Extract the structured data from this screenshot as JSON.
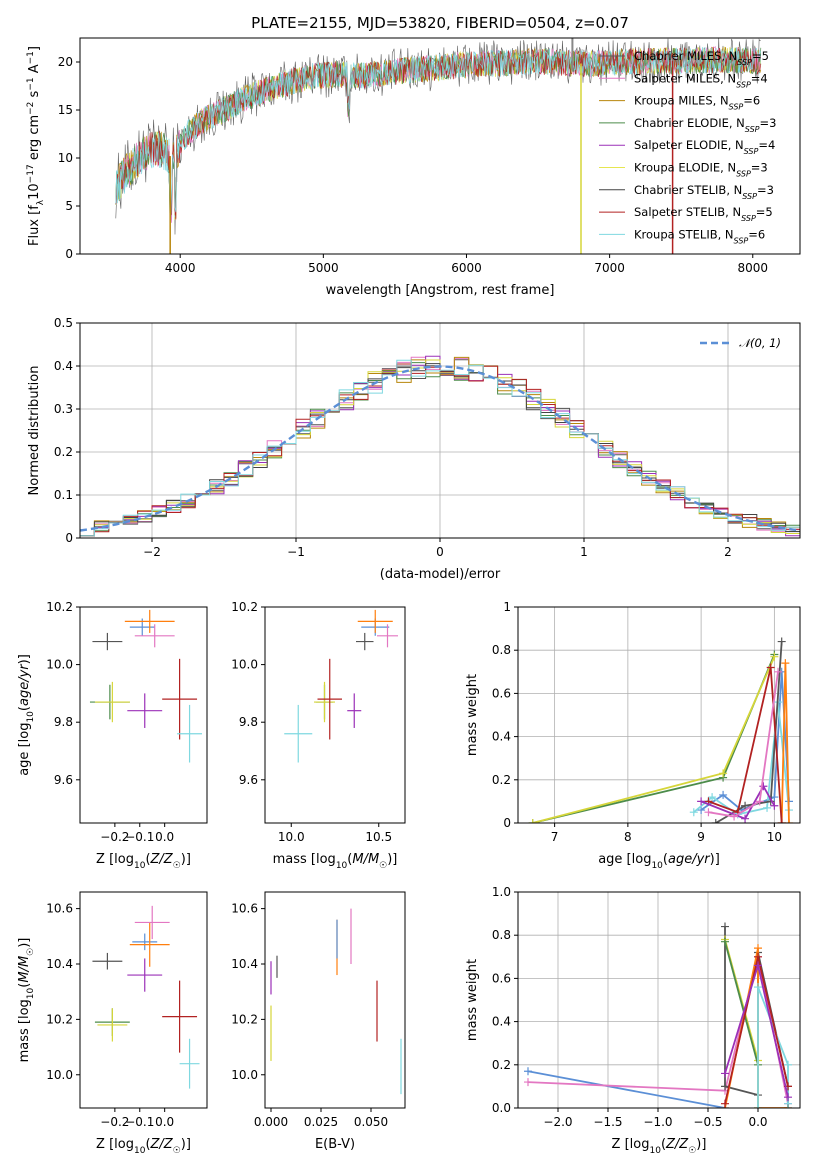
{
  "figure_title": "PLATE=2155, MJD=53820, FIBERID=0504, z=0.07",
  "colors": {
    "chabrier_miles": "#1f77b4",
    "salpeter_miles": "#ff7f0e",
    "kroupa_miles": "#c9a227",
    "chabrier_elodie": "#4c8c4a",
    "salpeter_elodie": "#9b30b8",
    "kroupa_elodie": "#d6d63a",
    "chabrier_stelib": "#555555",
    "salpeter_stelib": "#b22222",
    "kroupa_stelib": "#7fd8e0",
    "gaussian": "#5b8fd6"
  },
  "legend": [
    {
      "label": "Chabrier MILES, N",
      "sub": "SSP",
      "suffix": "=5",
      "color": "#5a5a5a"
    },
    {
      "label": "Salpeter MILES, N",
      "sub": "SSP",
      "suffix": "=4",
      "color": "#e377c2"
    },
    {
      "label": "Kroupa MILES, N",
      "sub": "SSP",
      "suffix": "=6",
      "color": "#b8860b"
    },
    {
      "label": "Chabrier ELODIE, N",
      "sub": "SSP",
      "suffix": "=3",
      "color": "#4c8c4a"
    },
    {
      "label": "Salpeter ELODIE, N",
      "sub": "SSP",
      "suffix": "=4",
      "color": "#9b30b8"
    },
    {
      "label": "Kroupa ELODIE, N",
      "sub": "SSP",
      "suffix": "=3",
      "color": "#e6e650"
    },
    {
      "label": "Chabrier STELIB, N",
      "sub": "SSP",
      "suffix": "=3",
      "color": "#444444"
    },
    {
      "label": "Salpeter STELIB, N",
      "sub": "SSP",
      "suffix": "=5",
      "color": "#b22222"
    },
    {
      "label": "Kroupa STELIB, N",
      "sub": "SSP",
      "suffix": "=6",
      "color": "#7fd8e0"
    }
  ],
  "chart_data": [
    {
      "id": "spectrum",
      "type": "line",
      "xlabel": "wavelength [Angstrom, rest frame]",
      "ylabel": "Flux [fλ10⁻¹⁷ erg cm⁻² s⁻¹ A⁻¹]",
      "xlim": [
        3300,
        8330
      ],
      "ylim": [
        0,
        22.5
      ],
      "xticks": [
        4000,
        5000,
        6000,
        7000,
        8000
      ],
      "yticks": [
        0,
        5,
        10,
        15,
        20
      ],
      "envelope": {
        "x": [
          3550,
          3650,
          3750,
          3850,
          3950,
          4050,
          4150,
          4300,
          4500,
          4700,
          4900,
          5100,
          5300,
          5500,
          5700,
          5900,
          6100,
          6300,
          6500,
          6700,
          6900,
          7100,
          7300,
          7500,
          7700,
          7900,
          8050
        ],
        "y": [
          7,
          9,
          10.5,
          11,
          10,
          12.5,
          13.8,
          15,
          16.5,
          17.6,
          18.5,
          18.7,
          18.6,
          19,
          19.3,
          19.6,
          19.8,
          19.9,
          20.1,
          19.9,
          19.8,
          20,
          20.1,
          20.1,
          20.2,
          20.2,
          20.1
        ]
      },
      "dips_x": [
        3934,
        4861,
        5175,
        6563,
        6800,
        7440
      ]
    },
    {
      "id": "residuals",
      "type": "histogram",
      "xlabel": "(data-model)/error",
      "ylabel": "Normed distribution",
      "xlim": [
        -2.5,
        2.5
      ],
      "ylim": [
        0,
        0.5
      ],
      "xticks": [
        -2,
        -1,
        0,
        1,
        2
      ],
      "yticks": [
        0.0,
        0.1,
        0.2,
        0.3,
        0.4,
        0.5
      ],
      "legend_label": "𝒩(0, 1)",
      "bin_width": 0.1,
      "series_bins_from": -2.5
    },
    {
      "id": "z_age",
      "type": "errorbar",
      "xlabel": "Z [log10(Z/Z☉)]",
      "ylabel": "age [log10(age/yr)]",
      "xlim": [
        -0.34,
        0.17
      ],
      "ylim": [
        9.45,
        10.2
      ],
      "xticks": [
        -0.2,
        -0.1,
        0.0
      ],
      "yticks": [
        9.6,
        9.8,
        10.0,
        10.2
      ],
      "points": [
        {
          "x": -0.23,
          "y": 10.08,
          "xe": 0.06,
          "ye": 0.03,
          "c": "#555555"
        },
        {
          "x": -0.09,
          "y": 10.13,
          "xe": 0.05,
          "ye": 0.03,
          "c": "#5b8fd6"
        },
        {
          "x": -0.06,
          "y": 10.15,
          "xe": 0.1,
          "ye": 0.04,
          "c": "#ff7f0e"
        },
        {
          "x": -0.04,
          "y": 10.1,
          "xe": 0.08,
          "ye": 0.04,
          "c": "#e377c2"
        },
        {
          "x": -0.22,
          "y": 9.87,
          "xe": 0.08,
          "ye": 0.06,
          "c": "#4c8c4a"
        },
        {
          "x": -0.21,
          "y": 9.87,
          "xe": 0.07,
          "ye": 0.07,
          "c": "#d6d63a"
        },
        {
          "x": -0.08,
          "y": 9.84,
          "xe": 0.07,
          "ye": 0.06,
          "c": "#9b30b8"
        },
        {
          "x": 0.06,
          "y": 9.88,
          "xe": 0.07,
          "ye": 0.14,
          "c": "#b22222"
        },
        {
          "x": 0.1,
          "y": 9.76,
          "xe": 0.05,
          "ye": 0.1,
          "c": "#7fd8e0"
        }
      ]
    },
    {
      "id": "mass_age",
      "type": "errorbar",
      "xlabel": "mass [log10(M/M☉)]",
      "ylabel": "",
      "xlim": [
        9.85,
        10.65
      ],
      "ylim": [
        9.45,
        10.2
      ],
      "xticks": [
        10.0,
        10.5
      ],
      "yticks": [
        9.6,
        9.8,
        10.0,
        10.2
      ],
      "points": [
        {
          "x": 10.42,
          "y": 10.08,
          "xe": 0.05,
          "ye": 0.03,
          "c": "#555555"
        },
        {
          "x": 10.48,
          "y": 10.13,
          "xe": 0.08,
          "ye": 0.03,
          "c": "#5b8fd6"
        },
        {
          "x": 10.48,
          "y": 10.15,
          "xe": 0.1,
          "ye": 0.04,
          "c": "#ff7f0e"
        },
        {
          "x": 10.55,
          "y": 10.1,
          "xe": 0.06,
          "ye": 0.04,
          "c": "#e377c2"
        },
        {
          "x": 10.19,
          "y": 9.87,
          "xe": 0.05,
          "ye": 0.06,
          "c": "#4c8c4a"
        },
        {
          "x": 10.19,
          "y": 9.87,
          "xe": 0.06,
          "ye": 0.07,
          "c": "#d6d63a"
        },
        {
          "x": 10.36,
          "y": 9.84,
          "xe": 0.04,
          "ye": 0.06,
          "c": "#9b30b8"
        },
        {
          "x": 10.22,
          "y": 9.88,
          "xe": 0.07,
          "ye": 0.14,
          "c": "#b22222"
        },
        {
          "x": 10.04,
          "y": 9.76,
          "xe": 0.08,
          "ye": 0.1,
          "c": "#7fd8e0"
        }
      ]
    },
    {
      "id": "age_weight",
      "type": "line",
      "xlabel": "age [log10(age/yr)]",
      "ylabel": "mass weight",
      "xlim": [
        6.5,
        10.35
      ],
      "ylim": [
        0,
        1.0
      ],
      "xticks": [
        7,
        8,
        9,
        10
      ],
      "yticks": [
        0.0,
        0.2,
        0.4,
        0.6,
        0.8,
        1.0
      ],
      "series": [
        {
          "c": "#4c8c4a",
          "x": [
            6.7,
            9.3,
            10.0
          ],
          "y": [
            0.0,
            0.21,
            0.78
          ]
        },
        {
          "c": "#d6d63a",
          "x": [
            6.7,
            9.3,
            10.0
          ],
          "y": [
            0.0,
            0.23,
            0.77
          ]
        },
        {
          "c": "#5b8fd6",
          "x": [
            9.0,
            9.3,
            9.55,
            10.0,
            10.1,
            10.2
          ],
          "y": [
            0.06,
            0.13,
            0.06,
            0.12,
            0.7,
            0.1
          ]
        },
        {
          "c": "#7fd8e0",
          "x": [
            8.9,
            9.15,
            9.5,
            9.9,
            10.05,
            10.2
          ],
          "y": [
            0.05,
            0.12,
            0.04,
            0.07,
            0.56,
            0.06
          ]
        },
        {
          "c": "#ff7f0e",
          "x": [
            10.1,
            10.15,
            10.2
          ],
          "y": [
            0.0,
            0.74,
            0.0
          ]
        },
        {
          "c": "#555555",
          "x": [
            9.2,
            9.6,
            9.95,
            10.1
          ],
          "y": [
            0.0,
            0.08,
            0.1,
            0.84
          ]
        },
        {
          "c": "#b22222",
          "x": [
            9.1,
            9.5,
            9.95,
            10.1
          ],
          "y": [
            0.1,
            0.05,
            0.72,
            0.0
          ]
        },
        {
          "c": "#9b30b8",
          "x": [
            9.0,
            9.6,
            9.85,
            10.0
          ],
          "y": [
            0.1,
            0.02,
            0.17,
            0.08
          ]
        },
        {
          "c": "#e377c2",
          "x": [
            9.1,
            9.45,
            9.8,
            10.05
          ],
          "y": [
            0.05,
            0.03,
            0.1,
            0.7
          ]
        }
      ]
    },
    {
      "id": "z_mass",
      "type": "errorbar",
      "xlabel": "Z [log10(Z/Z☉)]",
      "ylabel": "mass [log10(M/M☉)]",
      "xlim": [
        -0.34,
        0.17
      ],
      "ylim": [
        9.88,
        10.66
      ],
      "xticks": [
        -0.2,
        -0.1,
        0.0
      ],
      "yticks": [
        10.0,
        10.2,
        10.4,
        10.6
      ],
      "points": [
        {
          "x": -0.23,
          "y": 10.41,
          "xe": 0.06,
          "ye": 0.03,
          "c": "#555555"
        },
        {
          "x": -0.08,
          "y": 10.48,
          "xe": 0.05,
          "ye": 0.03,
          "c": "#5b8fd6"
        },
        {
          "x": -0.06,
          "y": 10.47,
          "xe": 0.08,
          "ye": 0.08,
          "c": "#ff7f0e"
        },
        {
          "x": -0.05,
          "y": 10.55,
          "xe": 0.07,
          "ye": 0.06,
          "c": "#e377c2"
        },
        {
          "x": -0.21,
          "y": 10.19,
          "xe": 0.07,
          "ye": 0.05,
          "c": "#4c8c4a"
        },
        {
          "x": -0.21,
          "y": 10.18,
          "xe": 0.06,
          "ye": 0.06,
          "c": "#d6d63a"
        },
        {
          "x": -0.08,
          "y": 10.36,
          "xe": 0.07,
          "ye": 0.06,
          "c": "#9b30b8"
        },
        {
          "x": 0.06,
          "y": 10.21,
          "xe": 0.07,
          "ye": 0.13,
          "c": "#b22222"
        },
        {
          "x": 0.1,
          "y": 10.04,
          "xe": 0.04,
          "ye": 0.09,
          "c": "#7fd8e0"
        }
      ]
    },
    {
      "id": "ebv_mass",
      "type": "errorbar",
      "xlabel": "E(B-V)",
      "ylabel": "",
      "xlim": [
        -0.003,
        0.067
      ],
      "ylim": [
        9.88,
        10.66
      ],
      "xticks": [
        0.0,
        0.025,
        0.05
      ],
      "xticklabels": [
        "0.000",
        "0.025",
        "0.050"
      ],
      "yticks": [
        10.0,
        10.2,
        10.4,
        10.6
      ],
      "points": [
        {
          "x": 0.0,
          "y": 10.35,
          "xe": 0,
          "ye": 0.06,
          "c": "#9b30b8"
        },
        {
          "x": 0.0,
          "y": 10.15,
          "xe": 0,
          "ye": 0.1,
          "c": "#d6d63a"
        },
        {
          "x": 0.003,
          "y": 10.39,
          "xe": 0,
          "ye": 0.04,
          "c": "#555555"
        },
        {
          "x": 0.033,
          "y": 10.46,
          "xe": 0,
          "ye": 0.1,
          "c": "#ff7f0e"
        },
        {
          "x": 0.033,
          "y": 10.49,
          "xe": 0,
          "ye": 0.07,
          "c": "#5b8fd6"
        },
        {
          "x": 0.04,
          "y": 10.5,
          "xe": 0,
          "ye": 0.1,
          "c": "#e377c2"
        },
        {
          "x": 0.053,
          "y": 10.23,
          "xe": 0,
          "ye": 0.11,
          "c": "#b22222"
        },
        {
          "x": 0.065,
          "y": 10.03,
          "xe": 0,
          "ye": 0.1,
          "c": "#7fd8e0"
        }
      ]
    },
    {
      "id": "z_weight",
      "type": "line",
      "xlabel": "Z [log10(Z/Z☉)]",
      "ylabel": "mass weight",
      "xlim": [
        -2.4,
        0.42
      ],
      "ylim": [
        0,
        1.0
      ],
      "xticks": [
        -2.0,
        -1.5,
        -1.0,
        -0.5,
        0.0
      ],
      "yticks": [
        0.0,
        0.2,
        0.4,
        0.6,
        0.8,
        1.0
      ],
      "series": [
        {
          "c": "#5b8fd6",
          "x": [
            -2.3,
            -0.33
          ],
          "y": [
            0.17,
            0.0
          ]
        },
        {
          "c": "#e377c2",
          "x": [
            -2.3,
            -0.33,
            0.0,
            0.3
          ],
          "y": [
            0.12,
            0.08,
            0.7,
            0.02
          ]
        },
        {
          "c": "#555555",
          "x": [
            -0.33,
            -0.33,
            0.0,
            0.0,
            0.3,
            0.3
          ],
          "y": [
            0.84,
            0.1,
            0.06,
            0.72,
            0.1,
            0.0
          ]
        },
        {
          "c": "#d6d63a",
          "x": [
            -0.33,
            0.0,
            0.0
          ],
          "y": [
            0.78,
            0.22,
            0.0
          ]
        },
        {
          "c": "#4c8c4a",
          "x": [
            -0.33,
            0.0
          ],
          "y": [
            0.77,
            0.2
          ]
        },
        {
          "c": "#ff7f0e",
          "x": [
            -0.33,
            0.0,
            0.0,
            0.3
          ],
          "y": [
            0.0,
            0.74,
            0.0,
            0.0
          ]
        },
        {
          "c": "#7fd8e0",
          "x": [
            0.0,
            0.0,
            0.3,
            0.3
          ],
          "y": [
            0.0,
            0.56,
            0.2,
            0.02
          ]
        },
        {
          "c": "#b22222",
          "x": [
            -0.33,
            0.0,
            0.3
          ],
          "y": [
            0.02,
            0.7,
            0.1
          ]
        },
        {
          "c": "#9b30b8",
          "x": [
            -0.33,
            0.0,
            0.3
          ],
          "y": [
            0.16,
            0.66,
            0.05
          ]
        }
      ]
    }
  ]
}
